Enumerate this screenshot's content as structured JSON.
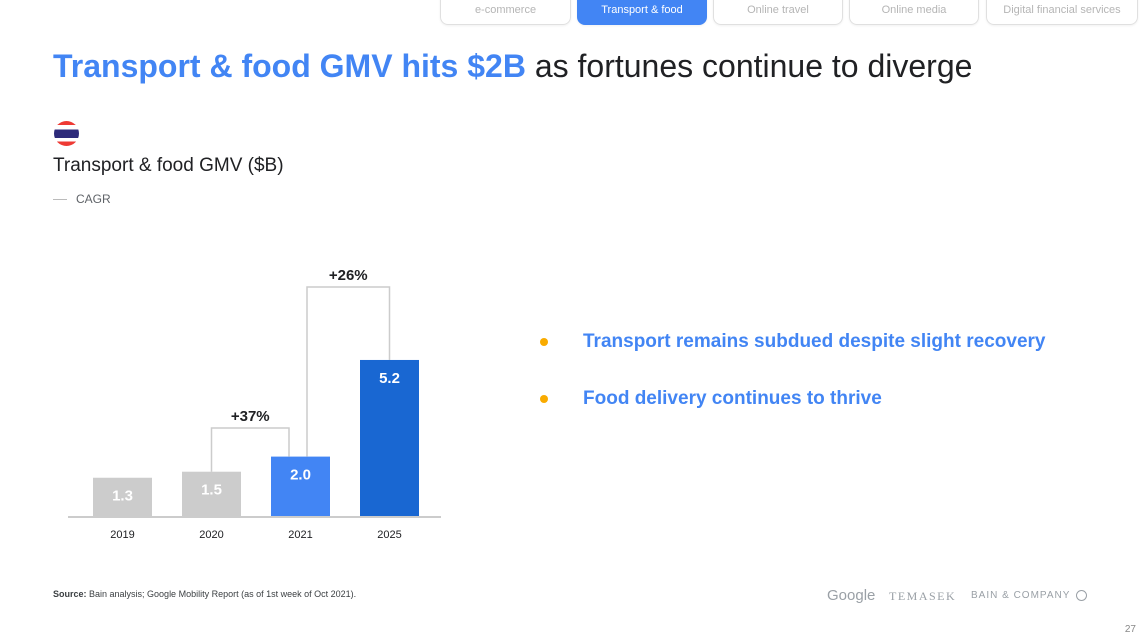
{
  "tabs": [
    {
      "label": "e-commerce"
    },
    {
      "label": "Transport & food"
    },
    {
      "label": "Online travel"
    },
    {
      "label": "Online media"
    },
    {
      "label": "Digital financial services"
    }
  ],
  "title": {
    "highlight": "Transport & food GMV hits $2B",
    "rest": " as fortunes continue to diverge"
  },
  "subtitle": "Transport & food GMV ($B)",
  "legend": {
    "cagr": "CAGR"
  },
  "chart_data": {
    "type": "bar",
    "title": "Transport & food GMV ($B)",
    "categories": [
      "2019",
      "2020",
      "2021",
      "2025"
    ],
    "values": [
      1.3,
      1.5,
      2.0,
      5.2
    ],
    "value_labels": [
      "1.3",
      "1.5",
      "2.0",
      "5.2"
    ],
    "colors": [
      "#cccccc",
      "#cccccc",
      "#4285f4",
      "#1967d2"
    ],
    "annotations": [
      {
        "label": "+37%",
        "from": "2020",
        "to": "2021"
      },
      {
        "label": "+26%",
        "from": "2021",
        "to": "2025"
      }
    ],
    "ylim": [
      0,
      5.2
    ]
  },
  "bullets": [
    "Transport remains subdued despite slight recovery",
    "Food delivery continues to thrive"
  ],
  "source": {
    "label": "Source:",
    "text": " Bain analysis; Google Mobility Report (as of 1st week of Oct 2021)."
  },
  "logos": {
    "google": "Google",
    "temasek": "TEMASEK",
    "bain": "BAIN & COMPANY"
  },
  "page_number": "27"
}
